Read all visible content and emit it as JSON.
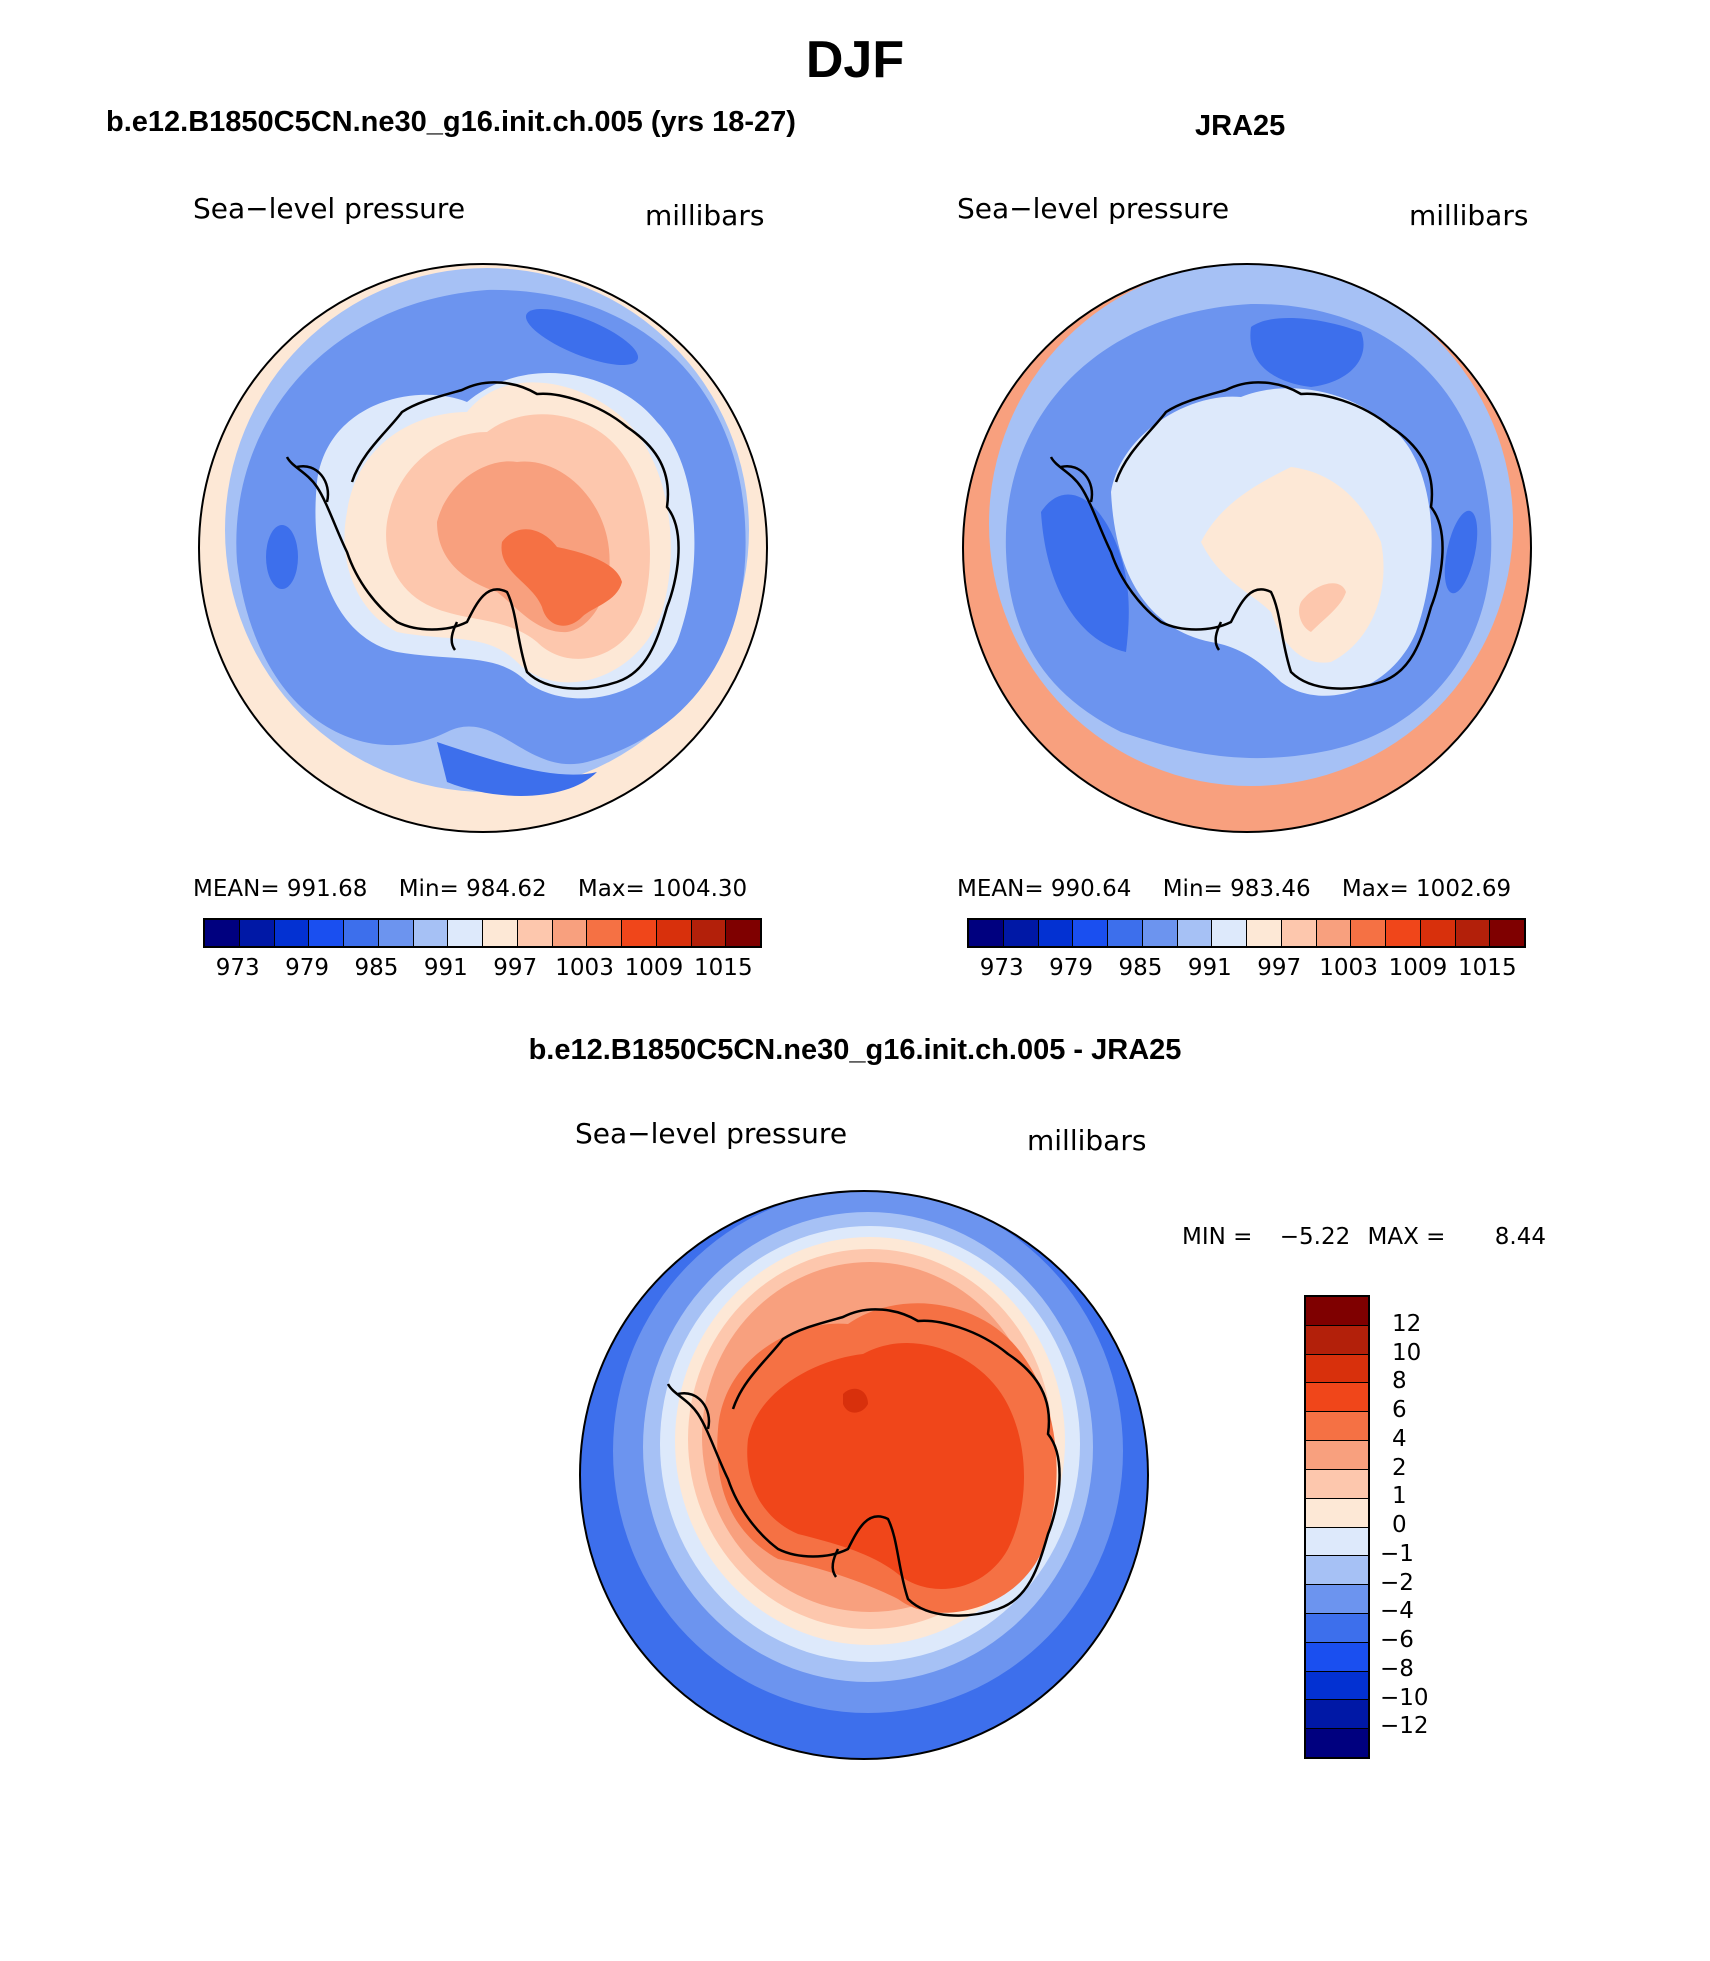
{
  "title": "DJF",
  "panels": {
    "model": {
      "title": "b.e12.B1850C5CN.ne30_g16.init.ch.005 (yrs 18-27)",
      "variable_label": "Sea−level pressure",
      "units_label": "millibars",
      "stats": {
        "mean_label": "MEAN=",
        "mean": "991.68",
        "min_label": "Min=",
        "min": "984.62",
        "max_label": "Max=",
        "max": "1004.30"
      }
    },
    "obs": {
      "title": "JRA25",
      "variable_label": "Sea−level pressure",
      "units_label": "millibars",
      "stats": {
        "mean_label": "MEAN=",
        "mean": "990.64",
        "min_label": "Min=",
        "min": "983.46",
        "max_label": "Max=",
        "max": "1002.69"
      }
    },
    "diff": {
      "title": "b.e12.B1850C5CN.ne30_g16.init.ch.005 - JRA25",
      "variable_label": "Sea−level pressure",
      "units_label": "millibars",
      "minmax": {
        "min_label": "MIN =",
        "min": "−5.22",
        "max_label": "MAX =",
        "max": "8.44"
      }
    }
  },
  "colorbars": {
    "absolute": {
      "colors": [
        "#00007f",
        "#0018a6",
        "#0331d2",
        "#1a4ff0",
        "#3d6fec",
        "#6c94ef",
        "#a6c1f5",
        "#dde9fb",
        "#fde8d6",
        "#fdc7ad",
        "#f8a07e",
        "#f57144",
        "#f0461a",
        "#d8300c",
        "#b3200a",
        "#7f0000"
      ],
      "tick_labels": [
        "973",
        "979",
        "985",
        "991",
        "997",
        "1003",
        "1009",
        "1015"
      ]
    },
    "difference": {
      "colors": [
        "#7f0000",
        "#b3200a",
        "#d8300c",
        "#f0461a",
        "#f57144",
        "#f8a07e",
        "#fdc7ad",
        "#fde8d6",
        "#dde9fb",
        "#a6c1f5",
        "#6c94ef",
        "#3d6fec",
        "#1a4ff0",
        "#0331d2",
        "#0018a6",
        "#00007f"
      ],
      "tick_labels": [
        "12",
        "10",
        "8",
        "6",
        "4",
        "2",
        "1",
        "0",
        "−1",
        "−2",
        "−4",
        "−6",
        "−8",
        "−10",
        "−12"
      ]
    }
  },
  "map_fields": {
    "model": {
      "outer": "#fde8d6",
      "ocean_ring": "#a6c1f5",
      "deep_low": "#6c94ef",
      "core_low": "#3d6fec",
      "coast_band": "#dde9fb",
      "land_1": "#fde8d6",
      "land_2": "#fdc7ad",
      "land_3": "#f8a07e",
      "land_4": "#f57144"
    },
    "obs": {
      "outer": "#f8a07e",
      "ocean_ring": "#a6c1f5",
      "deep_low": "#6c94ef",
      "core_low": "#3d6fec",
      "coast_band": "#dde9fb",
      "land_1": "#fde8d6",
      "land_2": "#fdc7ad"
    },
    "diff": {
      "outer": "#3d6fec",
      "ring_1": "#6c94ef",
      "ring_2": "#a6c1f5",
      "ring_3": "#dde9fb",
      "ring_4": "#fde8d6",
      "ring_5": "#fdc7ad",
      "ring_6": "#f8a07e",
      "land_1": "#f57144",
      "land_2": "#f0461a",
      "land_3": "#d8300c"
    }
  }
}
